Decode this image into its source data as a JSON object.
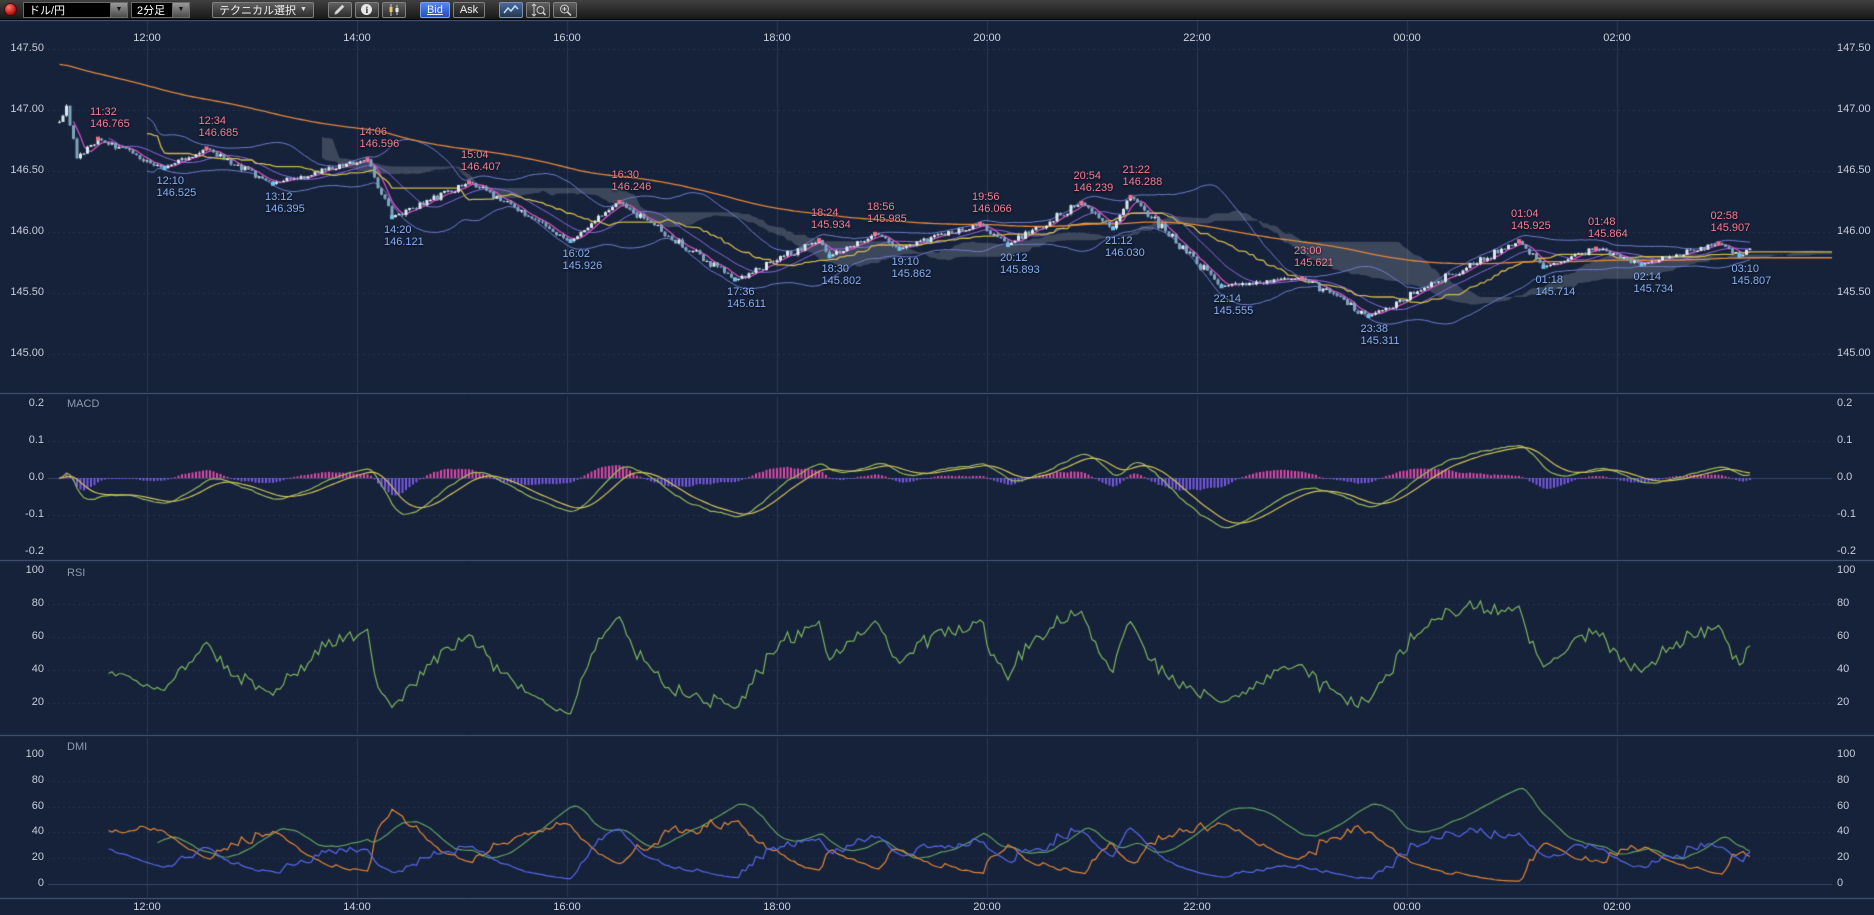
{
  "toolbar": {
    "pair": "ドル/円",
    "timeframe": "2分足",
    "technical": "テクニカル選択",
    "bid": "Bid",
    "ask": "Ask"
  },
  "panels": {
    "macd_title": "MACD",
    "rsi_title": "RSI",
    "dmi_title": "DMI"
  },
  "axes": {
    "time_ticks": [
      "12:00",
      "14:00",
      "16:00",
      "18:00",
      "20:00",
      "22:00",
      "00:00",
      "02:00"
    ],
    "price_ticks": [
      "147.50",
      "147.00",
      "146.50",
      "146.00",
      "145.50",
      "145.00"
    ],
    "macd_ticks": [
      "0.2",
      "0.1",
      "0.0",
      "-0.1",
      "-0.2"
    ],
    "rsi_ticks": [
      "100",
      "80",
      "60",
      "40",
      "20"
    ],
    "dmi_ticks": [
      "100",
      "80",
      "60",
      "40",
      "20",
      "0"
    ]
  },
  "colors": {
    "background": "#16213a",
    "grid": "#2a3852",
    "separator": "#4c5d80",
    "axis_text": "#c6cdda",
    "high_label": "#f47e92",
    "low_label": "#86b0f2",
    "candle_up": "#dce8ee",
    "candle_down": "#7fa3bc",
    "cloud_fill": "rgba(150,158,172,0.30)"
  },
  "chart_data": {
    "type": "candlestick",
    "instrument": "ドル/円",
    "interval": "2分足 (2-minute bars)",
    "quote_side": "Bid",
    "time_domain": [
      "11:05",
      "04:05"
    ],
    "price_axis": {
      "min": 145.0,
      "max": 147.5,
      "ticks": [
        147.5,
        147.0,
        146.5,
        146.0,
        145.5,
        145.0
      ]
    },
    "lead_in": [
      {
        "time": "11:10",
        "price": "146.90"
      },
      {
        "time": "11:14",
        "price": "147.03"
      },
      {
        "time": "11:20",
        "price": "146.60"
      }
    ],
    "pivots": [
      {
        "time": "11:32",
        "price": "146.765",
        "kind": "high"
      },
      {
        "time": "12:10",
        "price": "146.525",
        "kind": "low"
      },
      {
        "time": "12:34",
        "price": "146.685",
        "kind": "high"
      },
      {
        "time": "13:12",
        "price": "146.395",
        "kind": "low"
      },
      {
        "time": "14:06",
        "price": "146.596",
        "kind": "high"
      },
      {
        "time": "14:20",
        "price": "146.121",
        "kind": "low"
      },
      {
        "time": "15:04",
        "price": "146.407",
        "kind": "high"
      },
      {
        "time": "16:02",
        "price": "145.926",
        "kind": "low"
      },
      {
        "time": "16:30",
        "price": "146.246",
        "kind": "high"
      },
      {
        "time": "17:36",
        "price": "145.611",
        "kind": "low"
      },
      {
        "time": "18:24",
        "price": "145.934",
        "kind": "high"
      },
      {
        "time": "18:30",
        "price": "145.802",
        "kind": "low"
      },
      {
        "time": "18:56",
        "price": "145.985",
        "kind": "high"
      },
      {
        "time": "19:10",
        "price": "145.862",
        "kind": "low"
      },
      {
        "time": "19:56",
        "price": "146.066",
        "kind": "high"
      },
      {
        "time": "20:12",
        "price": "145.893",
        "kind": "low"
      },
      {
        "time": "20:54",
        "price": "146.239",
        "kind": "high"
      },
      {
        "time": "21:12",
        "price": "146.030",
        "kind": "low"
      },
      {
        "time": "21:22",
        "price": "146.288",
        "kind": "high"
      },
      {
        "time": "22:14",
        "price": "145.555",
        "kind": "low"
      },
      {
        "time": "23:00",
        "price": "145.621",
        "kind": "high"
      },
      {
        "time": "23:38",
        "price": "145.311",
        "kind": "low"
      },
      {
        "time": "01:04",
        "price": "145.925",
        "kind": "high"
      },
      {
        "time": "01:18",
        "price": "145.714",
        "kind": "low"
      },
      {
        "time": "01:48",
        "price": "145.864",
        "kind": "high"
      },
      {
        "time": "02:14",
        "price": "145.734",
        "kind": "low"
      },
      {
        "time": "02:58",
        "price": "145.907",
        "kind": "high"
      },
      {
        "time": "03:10",
        "price": "145.807",
        "kind": "low"
      }
    ],
    "series_end": {
      "time": "03:16",
      "price": "145.86"
    },
    "overlays": [
      {
        "name": "ichimoku-cloud",
        "color": "rgba(150,158,172,0.30)"
      },
      {
        "name": "bollinger-bands",
        "period": 26,
        "deviation": 2,
        "color": "#6d7ccc"
      },
      {
        "name": "ma-fast",
        "period": 5,
        "color": "#e050c8"
      },
      {
        "name": "ma-mid",
        "period": 15,
        "color": "#8868e0"
      },
      {
        "name": "kijun-line",
        "period": 26,
        "color": "#cdb84e"
      },
      {
        "name": "ma-slow",
        "color": "#e0883c"
      }
    ],
    "sub_panels": [
      {
        "name": "MACD",
        "range": [
          -0.2,
          0.2
        ],
        "ticks": [
          0.2,
          0.1,
          0.0,
          -0.1,
          -0.2
        ],
        "colors": {
          "macd_line": "#98b85a",
          "signal_line": "#cfc05a",
          "hist_positive": "#d84aa8",
          "hist_negative": "#7458e0"
        }
      },
      {
        "name": "RSI",
        "range": [
          0,
          100
        ],
        "ticks": [
          100,
          80,
          60,
          40,
          20
        ],
        "period": 14,
        "color": "#7cb55e"
      },
      {
        "name": "DMI",
        "range": [
          0,
          100
        ],
        "ticks": [
          100,
          80,
          60,
          40,
          20,
          0
        ],
        "colors": {
          "plus_di": "#5668e8",
          "minus_di": "#e08838",
          "adx": "#5f9f5f"
        }
      }
    ]
  }
}
